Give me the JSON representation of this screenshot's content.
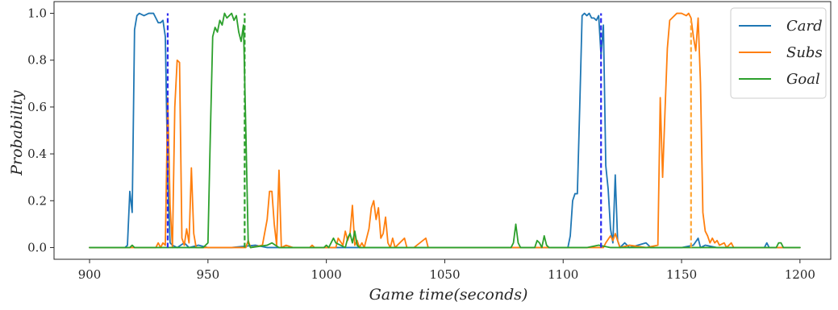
{
  "chart_data": {
    "type": "line",
    "title": "",
    "xlabel": "Game time(seconds)",
    "ylabel": "Probability",
    "xlim": [
      885,
      1213
    ],
    "ylim": [
      -0.05,
      1.05
    ],
    "xticks": [
      900,
      950,
      1000,
      1050,
      1100,
      1150,
      1200
    ],
    "yticks": [
      0.0,
      0.2,
      0.4,
      0.6,
      0.8,
      1.0
    ],
    "xtick_labels": [
      "900",
      "950",
      "1000",
      "1050",
      "1100",
      "1150",
      "1200"
    ],
    "ytick_labels": [
      "0.0",
      "0.2",
      "0.4",
      "0.6",
      "0.8",
      "1.0"
    ],
    "grid": false,
    "legend_position": "top-right",
    "series": [
      {
        "name": "Card",
        "color": "#1f77b4",
        "points": [
          [
            900,
            0.0
          ],
          [
            915,
            0.0
          ],
          [
            916,
            0.01
          ],
          [
            917,
            0.24
          ],
          [
            918,
            0.15
          ],
          [
            919,
            0.93
          ],
          [
            920,
            0.99
          ],
          [
            921,
            1.0
          ],
          [
            923,
            0.99
          ],
          [
            925,
            1.0
          ],
          [
            927,
            1.0
          ],
          [
            928,
            0.98
          ],
          [
            929,
            0.96
          ],
          [
            930,
            0.96
          ],
          [
            931,
            0.97
          ],
          [
            932,
            0.9
          ],
          [
            933,
            0.3
          ],
          [
            934,
            0.02
          ],
          [
            935,
            0.01
          ],
          [
            937,
            0.0
          ],
          [
            940,
            0.02
          ],
          [
            942,
            0.0
          ],
          [
            946,
            0.01
          ],
          [
            950,
            0.0
          ],
          [
            960,
            0.0
          ],
          [
            970,
            0.01
          ],
          [
            975,
            0.0
          ],
          [
            990,
            0.0
          ],
          [
            1000,
            0.0
          ],
          [
            1020,
            0.0
          ],
          [
            1050,
            0.0
          ],
          [
            1080,
            0.0
          ],
          [
            1099,
            0.0
          ],
          [
            1102,
            0.0
          ],
          [
            1103,
            0.05
          ],
          [
            1104,
            0.2
          ],
          [
            1105,
            0.23
          ],
          [
            1106,
            0.23
          ],
          [
            1107,
            0.6
          ],
          [
            1108,
            0.99
          ],
          [
            1109,
            1.0
          ],
          [
            1110,
            0.99
          ],
          [
            1111,
            1.0
          ],
          [
            1112,
            0.98
          ],
          [
            1113,
            0.98
          ],
          [
            1114,
            0.97
          ],
          [
            1115,
            0.99
          ],
          [
            1116,
            0.82
          ],
          [
            1117,
            0.95
          ],
          [
            1118,
            0.35
          ],
          [
            1119,
            0.25
          ],
          [
            1120,
            0.08
          ],
          [
            1121,
            0.02
          ],
          [
            1122,
            0.31
          ],
          [
            1123,
            0.03
          ],
          [
            1124,
            0.0
          ],
          [
            1126,
            0.02
          ],
          [
            1128,
            0.0
          ],
          [
            1135,
            0.02
          ],
          [
            1137,
            0.0
          ],
          [
            1150,
            0.0
          ],
          [
            1155,
            0.01
          ],
          [
            1157,
            0.04
          ],
          [
            1158,
            0.0
          ],
          [
            1160,
            0.01
          ],
          [
            1165,
            0.0
          ],
          [
            1185,
            0.0
          ],
          [
            1186,
            0.02
          ],
          [
            1187,
            0.0
          ],
          [
            1200,
            0.0
          ]
        ]
      },
      {
        "name": "Subs",
        "color": "#ff7f0e",
        "points": [
          [
            900,
            0.0
          ],
          [
            928,
            0.0
          ],
          [
            929,
            0.02
          ],
          [
            930,
            0.0
          ],
          [
            931,
            0.02
          ],
          [
            932,
            0.01
          ],
          [
            933,
            0.64
          ],
          [
            934,
            0.18
          ],
          [
            935,
            0.0
          ],
          [
            936,
            0.6
          ],
          [
            937,
            0.8
          ],
          [
            938,
            0.79
          ],
          [
            939,
            0.04
          ],
          [
            940,
            0.01
          ],
          [
            941,
            0.08
          ],
          [
            942,
            0.02
          ],
          [
            943,
            0.34
          ],
          [
            944,
            0.06
          ],
          [
            945,
            0.0
          ],
          [
            966,
            0.0
          ],
          [
            967,
            0.03
          ],
          [
            968,
            0.0
          ],
          [
            973,
            0.01
          ],
          [
            975,
            0.12
          ],
          [
            976,
            0.24
          ],
          [
            977,
            0.24
          ],
          [
            978,
            0.1
          ],
          [
            979,
            0.01
          ],
          [
            980,
            0.33
          ],
          [
            981,
            0.0
          ],
          [
            983,
            0.01
          ],
          [
            986,
            0.0
          ],
          [
            993,
            0.0
          ],
          [
            994,
            0.01
          ],
          [
            995,
            0.0
          ],
          [
            1004,
            0.0
          ],
          [
            1005,
            0.04
          ],
          [
            1007,
            0.01
          ],
          [
            1008,
            0.07
          ],
          [
            1009,
            0.03
          ],
          [
            1010,
            0.06
          ],
          [
            1011,
            0.18
          ],
          [
            1012,
            0.01
          ],
          [
            1013,
            0.03
          ],
          [
            1014,
            0.0
          ],
          [
            1015,
            0.02
          ],
          [
            1016,
            0.0
          ],
          [
            1018,
            0.08
          ],
          [
            1019,
            0.17
          ],
          [
            1020,
            0.2
          ],
          [
            1021,
            0.12
          ],
          [
            1022,
            0.17
          ],
          [
            1023,
            0.04
          ],
          [
            1024,
            0.06
          ],
          [
            1025,
            0.13
          ],
          [
            1026,
            0.02
          ],
          [
            1027,
            0.0
          ],
          [
            1028,
            0.04
          ],
          [
            1029,
            0.0
          ],
          [
            1033,
            0.04
          ],
          [
            1034,
            0.0
          ],
          [
            1037,
            0.0
          ],
          [
            1042,
            0.04
          ],
          [
            1043,
            0.0
          ],
          [
            1055,
            0.0
          ],
          [
            1110,
            0.0
          ],
          [
            1117,
            0.0
          ],
          [
            1118,
            0.02
          ],
          [
            1120,
            0.05
          ],
          [
            1121,
            0.03
          ],
          [
            1122,
            0.06
          ],
          [
            1123,
            0.03
          ],
          [
            1124,
            0.0
          ],
          [
            1128,
            0.01
          ],
          [
            1135,
            0.0
          ],
          [
            1140,
            0.01
          ],
          [
            1141,
            0.64
          ],
          [
            1142,
            0.3
          ],
          [
            1143,
            0.58
          ],
          [
            1144,
            0.85
          ],
          [
            1145,
            0.97
          ],
          [
            1147,
            0.99
          ],
          [
            1148,
            1.0
          ],
          [
            1150,
            1.0
          ],
          [
            1152,
            0.99
          ],
          [
            1153,
            1.0
          ],
          [
            1154,
            0.98
          ],
          [
            1155,
            0.9
          ],
          [
            1156,
            0.84
          ],
          [
            1157,
            0.98
          ],
          [
            1158,
            0.7
          ],
          [
            1159,
            0.15
          ],
          [
            1160,
            0.07
          ],
          [
            1161,
            0.05
          ],
          [
            1162,
            0.02
          ],
          [
            1163,
            0.04
          ],
          [
            1164,
            0.02
          ],
          [
            1165,
            0.03
          ],
          [
            1166,
            0.01
          ],
          [
            1168,
            0.02
          ],
          [
            1169,
            0.0
          ],
          [
            1171,
            0.02
          ],
          [
            1172,
            0.0
          ],
          [
            1200,
            0.0
          ]
        ]
      },
      {
        "name": "Goal",
        "color": "#2ca02c",
        "points": [
          [
            900,
            0.0
          ],
          [
            917,
            0.0
          ],
          [
            918,
            0.01
          ],
          [
            919,
            0.0
          ],
          [
            948,
            0.0
          ],
          [
            950,
            0.02
          ],
          [
            951,
            0.48
          ],
          [
            952,
            0.9
          ],
          [
            953,
            0.94
          ],
          [
            954,
            0.92
          ],
          [
            955,
            0.97
          ],
          [
            956,
            0.95
          ],
          [
            957,
            1.0
          ],
          [
            958,
            0.98
          ],
          [
            959,
            0.99
          ],
          [
            960,
            1.0
          ],
          [
            961,
            0.97
          ],
          [
            962,
            0.99
          ],
          [
            963,
            0.92
          ],
          [
            964,
            0.88
          ],
          [
            965,
            0.95
          ],
          [
            966,
            0.5
          ],
          [
            967,
            0.02
          ],
          [
            968,
            0.0
          ],
          [
            975,
            0.01
          ],
          [
            977,
            0.02
          ],
          [
            980,
            0.0
          ],
          [
            999,
            0.0
          ],
          [
            1000,
            0.01
          ],
          [
            1001,
            0.0
          ],
          [
            1003,
            0.04
          ],
          [
            1004,
            0.02
          ],
          [
            1006,
            0.01
          ],
          [
            1008,
            0.0
          ],
          [
            1009,
            0.04
          ],
          [
            1010,
            0.06
          ],
          [
            1011,
            0.02
          ],
          [
            1012,
            0.07
          ],
          [
            1013,
            0.01
          ],
          [
            1014,
            0.0
          ],
          [
            1078,
            0.0
          ],
          [
            1079,
            0.02
          ],
          [
            1080,
            0.1
          ],
          [
            1081,
            0.02
          ],
          [
            1082,
            0.0
          ],
          [
            1088,
            0.0
          ],
          [
            1089,
            0.03
          ],
          [
            1090,
            0.02
          ],
          [
            1091,
            0.0
          ],
          [
            1092,
            0.05
          ],
          [
            1093,
            0.01
          ],
          [
            1094,
            0.0
          ],
          [
            1110,
            0.0
          ],
          [
            1115,
            0.01
          ],
          [
            1120,
            0.0
          ],
          [
            1190,
            0.0
          ],
          [
            1191,
            0.02
          ],
          [
            1192,
            0.02
          ],
          [
            1193,
            0.0
          ],
          [
            1200,
            0.0
          ]
        ]
      }
    ],
    "annotations": [
      {
        "type": "vline",
        "x": 933,
        "y": [
          0,
          1.0
        ],
        "color": "#2b2bf0",
        "style": "dashed"
      },
      {
        "type": "vline",
        "x": 965.5,
        "y": [
          0,
          1.0
        ],
        "color": "#2ca02c",
        "style": "dashed"
      },
      {
        "type": "vline",
        "x": 1116,
        "y": [
          0,
          1.0
        ],
        "color": "#2b2bf0",
        "style": "dashed"
      },
      {
        "type": "vline",
        "x": 1154,
        "y": [
          0,
          0.97
        ],
        "color": "#ffa533",
        "style": "dashed"
      }
    ]
  }
}
